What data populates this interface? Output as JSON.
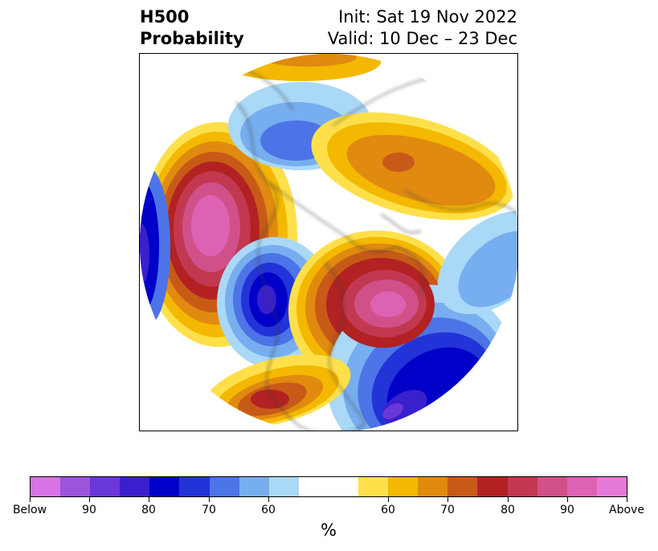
{
  "title": {
    "left_line1": "H500",
    "left_line2": "Probability",
    "right_line1": "Init: Sat 19 Nov 2022",
    "right_line2": "Valid: 10 Dec – 23 Dec"
  },
  "map": {
    "projection": "north-polar-stereographic",
    "anomalies": [
      {
        "name": "northeast-pacific-ridge",
        "sign": "above",
        "peak": "Above"
      },
      {
        "name": "western-us-trough",
        "sign": "below",
        "peak": 80
      },
      {
        "name": "eastern-canada-ridge",
        "sign": "above",
        "peak": 95
      },
      {
        "name": "western-atlantic-trough",
        "sign": "below",
        "peak": 85
      },
      {
        "name": "northern-europe-ridge",
        "sign": "above",
        "peak": 75
      },
      {
        "name": "southern-us-ridge",
        "sign": "above",
        "peak": 80
      },
      {
        "name": "siberia-trough",
        "sign": "below",
        "peak": 75
      },
      {
        "name": "european-trough",
        "sign": "below",
        "peak": 65
      }
    ]
  },
  "colorbar": {
    "colors": [
      "#d873e6",
      "#9b55dd",
      "#6a38d6",
      "#3a1fcd",
      "#0000c8",
      "#2233d8",
      "#4d74e6",
      "#77aeef",
      "#aad8f7",
      "#ffffff",
      "#ffffff",
      "#ffe04a",
      "#f4b800",
      "#e08a10",
      "#c85a18",
      "#b22222",
      "#c23850",
      "#d0508a",
      "#de62b4",
      "#e67ad8"
    ],
    "tick_labels": [
      "Below",
      "90",
      "80",
      "70",
      "60",
      "60",
      "70",
      "80",
      "90",
      "Above"
    ],
    "unit": "%"
  }
}
